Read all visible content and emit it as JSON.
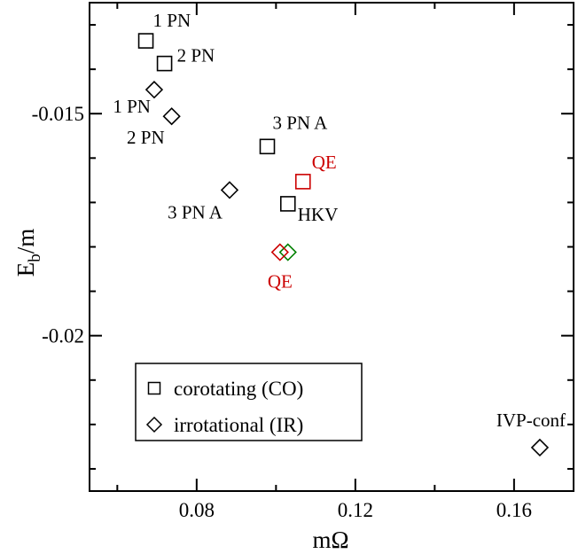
{
  "chart_data": {
    "type": "scatter",
    "xlabel": "mΩ",
    "ylabel_main": "E",
    "ylabel_sub": "b",
    "ylabel_tail": "/m",
    "xlim": [
      0.053,
      0.175
    ],
    "ylim": [
      -0.0235,
      -0.0125
    ],
    "x_ticks": [
      {
        "value": 0.08,
        "label": "0.08"
      },
      {
        "value": 0.12,
        "label": "0.12"
      },
      {
        "value": 0.16,
        "label": "0.16"
      }
    ],
    "y_ticks": [
      {
        "value": -0.015,
        "label": "-0.015"
      },
      {
        "value": -0.02,
        "label": "-0.02"
      }
    ],
    "legend": {
      "placement": "bottom-left",
      "entries": [
        {
          "marker": "square",
          "label": "corotating (CO)"
        },
        {
          "marker": "diamond",
          "label": "irrotational (IR)"
        }
      ]
    },
    "colors": {
      "black": "#000000",
      "red": "#ff0000",
      "green": "#008000"
    },
    "points": [
      {
        "marker": "square",
        "x": 0.0672,
        "y": -0.01336,
        "color": "#000000",
        "label": "1 PN"
      },
      {
        "marker": "square",
        "x": 0.0719,
        "y": -0.01387,
        "color": "#000000",
        "label": "2 PN"
      },
      {
        "marker": "diamond",
        "x": 0.0693,
        "y": -0.01446,
        "color": "#000000",
        "label": "1 PN"
      },
      {
        "marker": "diamond",
        "x": 0.0737,
        "y": -0.01506,
        "color": "#000000",
        "label": "2 PN"
      },
      {
        "marker": "square",
        "x": 0.0978,
        "y": -0.01574,
        "color": "#000000",
        "label": "3 PN A"
      },
      {
        "marker": "diamond",
        "x": 0.0883,
        "y": -0.01672,
        "color": "#000000",
        "label": "3 PN A"
      },
      {
        "marker": "square",
        "x": 0.1068,
        "y": -0.01653,
        "color": "#cc0000",
        "label": "QE"
      },
      {
        "marker": "square",
        "x": 0.103,
        "y": -0.01703,
        "color": "#000000",
        "label": "HKV"
      },
      {
        "marker": "diamond",
        "x": 0.103,
        "y": -0.01812,
        "color": "#008000",
        "label": ""
      },
      {
        "marker": "diamond",
        "x": 0.101,
        "y": -0.01812,
        "color": "#cc0000",
        "label": "QE"
      },
      {
        "marker": "diamond",
        "x": 0.1665,
        "y": -0.02252,
        "color": "#000000",
        "label": "IVP-conf"
      }
    ]
  }
}
